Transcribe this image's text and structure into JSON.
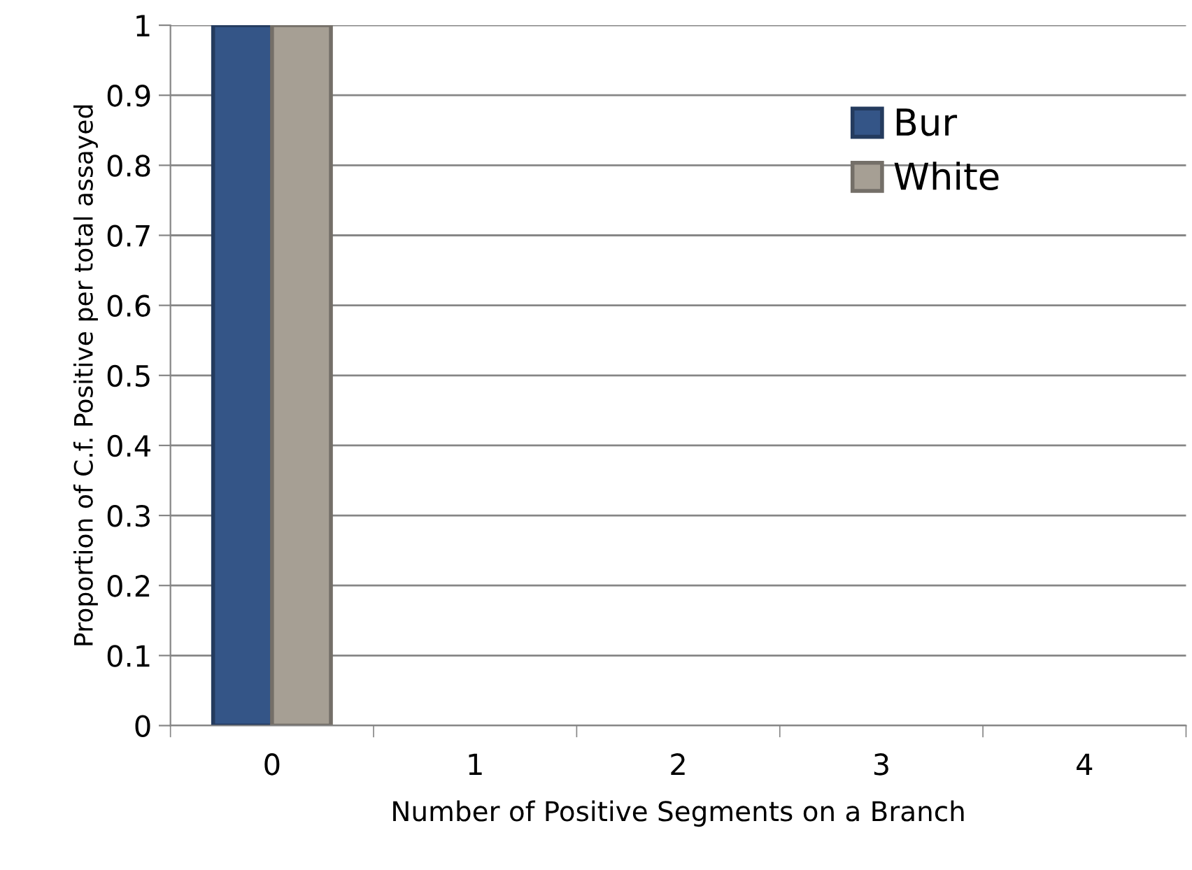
{
  "chart_data": {
    "type": "bar",
    "xlabel": "Number of Positive Segments on a Branch",
    "ylabel": "Proportion of C.f. Positive per total assayed",
    "categories": [
      "0",
      "1",
      "2",
      "3",
      "4"
    ],
    "series": [
      {
        "name": "Bur",
        "color": "#345587",
        "values": [
          1,
          0,
          0,
          0,
          0
        ]
      },
      {
        "name": "White",
        "color": "#a69f94",
        "values": [
          1,
          0,
          0,
          0,
          0
        ]
      }
    ],
    "ylim": [
      0,
      1
    ],
    "yticks": [
      0,
      0.1,
      0.2,
      0.3,
      0.4,
      0.5,
      0.6,
      0.7,
      0.8,
      0.9,
      1
    ],
    "grid": "y",
    "legend": "top right"
  }
}
